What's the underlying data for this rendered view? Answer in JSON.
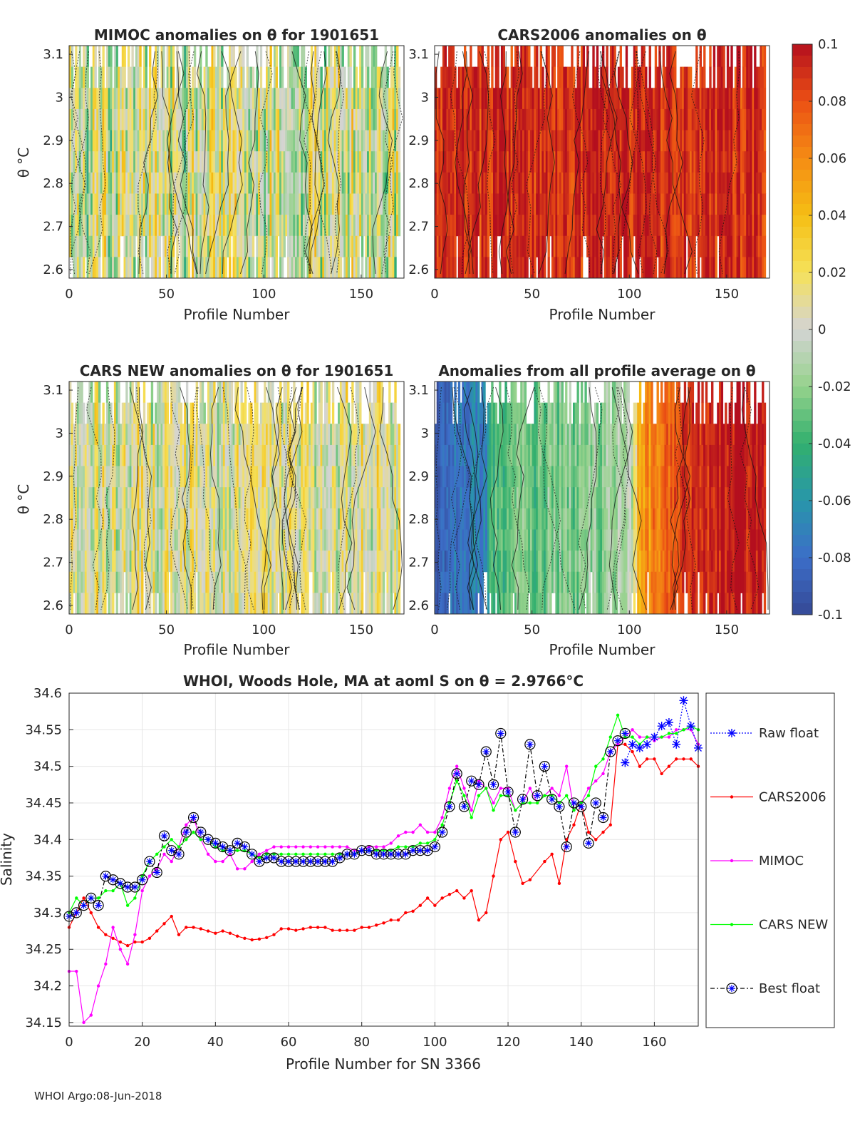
{
  "footer": "WHOI Argo:08-Jun-2018",
  "colors": {
    "raw": "#0000ff",
    "cars2006": "#ff0000",
    "mimoc": "#ff00ff",
    "carsnew": "#00ff00",
    "best": "#000000",
    "grid": "#e6e6e6"
  },
  "colorbar": {
    "ticks": [
      "0.1",
      "0.08",
      "0.06",
      "0.04",
      "0.02",
      "0",
      "-0.02",
      "-0.04",
      "-0.06",
      "-0.08",
      "-0.1"
    ],
    "range": [
      -0.1,
      0.1
    ],
    "colormap": "parula-like diverging (blue-green-gray-yellow-red)"
  },
  "chart_data": [
    {
      "type": "heatmap",
      "title": "MIMOC anomalies on θ  for 1901651",
      "xlabel": "Profile Number",
      "ylabel": "θ °C",
      "xlim": [
        0,
        172
      ],
      "ylim": [
        2.58,
        3.12
      ],
      "xticks": [
        "0",
        "50",
        "100",
        "150"
      ],
      "yticks": [
        "3.1",
        "3",
        "2.9",
        "2.8",
        "2.7",
        "2.6"
      ],
      "bias": 0.0,
      "spread": 0.045,
      "contours": true
    },
    {
      "type": "heatmap",
      "title": "CARS2006 anomalies on θ",
      "xlabel": "Profile Number",
      "ylabel": "",
      "xlim": [
        0,
        172
      ],
      "ylim": [
        2.58,
        3.12
      ],
      "xticks": [
        "0",
        "50",
        "100",
        "150"
      ],
      "yticks": [
        "3.1",
        "3",
        "2.9",
        "2.8",
        "2.7",
        "2.6"
      ],
      "bias": 0.09,
      "spread": 0.02,
      "contours": true
    },
    {
      "type": "heatmap",
      "title": "CARS NEW anomalies on θ for 1901651",
      "xlabel": "Profile Number",
      "ylabel": "θ °C",
      "xlim": [
        0,
        172
      ],
      "ylim": [
        2.58,
        3.12
      ],
      "xticks": [
        "0",
        "50",
        "100",
        "150"
      ],
      "yticks": [
        "3.1",
        "3",
        "2.9",
        "2.8",
        "2.7",
        "2.6"
      ],
      "bias": 0.005,
      "spread": 0.035,
      "contours": true
    },
    {
      "type": "heatmap",
      "title": "Anomalies from all profile average on θ",
      "xlabel": "Profile Number",
      "ylabel": "",
      "xlim": [
        0,
        172
      ],
      "ylim": [
        2.58,
        3.12
      ],
      "xticks": [
        "0",
        "50",
        "100",
        "150"
      ],
      "yticks": [
        "3.1",
        "3",
        "2.9",
        "2.8",
        "2.7",
        "2.6"
      ],
      "bias_by_profile": [
        [
          0,
          -0.09
        ],
        [
          25,
          -0.07
        ],
        [
          30,
          -0.035
        ],
        [
          80,
          -0.02
        ],
        [
          100,
          -0.015
        ],
        [
          105,
          0.05
        ],
        [
          120,
          0.08
        ],
        [
          150,
          0.1
        ],
        [
          172,
          0.1
        ]
      ],
      "spread": 0.02,
      "contours": true
    },
    {
      "type": "line",
      "title": "WHOI, Woods Hole, MA at aoml S on θ = 2.9766°C",
      "xlabel": "Profile Number for SN 3366",
      "ylabel": "Salinity",
      "xlim": [
        0,
        172
      ],
      "ylim": [
        34.145,
        34.6
      ],
      "xticks": [
        "0",
        "20",
        "40",
        "60",
        "80",
        "100",
        "120",
        "140",
        "160"
      ],
      "yticks": [
        "34.6",
        "34.55",
        "34.5",
        "34.45",
        "34.4",
        "34.35",
        "34.3",
        "34.25",
        "34.2",
        "34.15"
      ],
      "legend": [
        "Raw float",
        "CARS2006",
        "MIMOC",
        "CARS NEW",
        "Best float"
      ],
      "series": [
        {
          "name": "Raw float",
          "x": [
            152,
            154,
            156,
            158,
            160,
            162,
            164,
            166,
            168,
            170,
            172
          ],
          "y": [
            34.505,
            34.53,
            34.525,
            34.53,
            34.54,
            34.555,
            34.56,
            34.53,
            34.59,
            34.555,
            34.525
          ]
        },
        {
          "name": "Best float",
          "x": [
            0,
            2,
            4,
            6,
            8,
            10,
            12,
            14,
            16,
            18,
            20,
            22,
            24,
            26,
            28,
            30,
            32,
            34,
            36,
            38,
            40,
            42,
            44,
            46,
            48,
            50,
            52,
            54,
            56,
            58,
            60,
            62,
            64,
            66,
            68,
            70,
            72,
            74,
            76,
            78,
            80,
            82,
            84,
            86,
            88,
            90,
            92,
            94,
            96,
            98,
            100,
            102,
            104,
            106,
            108,
            110,
            112,
            114,
            116,
            118,
            120,
            122,
            124,
            126,
            128,
            130,
            132,
            134,
            136,
            138,
            140,
            142,
            144,
            146,
            148,
            150,
            152
          ],
          "y": [
            34.295,
            34.3,
            34.31,
            34.32,
            34.31,
            34.35,
            34.345,
            34.34,
            34.335,
            34.335,
            34.345,
            34.37,
            34.355,
            34.405,
            34.385,
            34.38,
            34.41,
            34.43,
            34.41,
            34.4,
            34.395,
            34.39,
            34.385,
            34.395,
            34.39,
            34.38,
            34.37,
            34.375,
            34.375,
            34.37,
            34.37,
            34.37,
            34.37,
            34.37,
            34.37,
            34.37,
            34.37,
            34.375,
            34.38,
            34.38,
            34.385,
            34.385,
            34.38,
            34.38,
            34.38,
            34.38,
            34.38,
            34.385,
            34.385,
            34.385,
            34.39,
            34.41,
            34.445,
            34.49,
            34.445,
            34.48,
            34.475,
            34.52,
            34.475,
            34.545,
            34.465,
            34.41,
            34.455,
            34.53,
            34.46,
            34.5,
            34.455,
            34.445,
            34.39,
            34.45,
            34.445,
            34.395,
            34.45,
            34.43,
            34.52,
            34.535,
            34.545
          ]
        },
        {
          "name": "CARS2006",
          "x": [
            0,
            2,
            4,
            6,
            8,
            10,
            12,
            14,
            16,
            18,
            20,
            22,
            24,
            26,
            28,
            30,
            32,
            34,
            36,
            38,
            40,
            42,
            44,
            46,
            48,
            50,
            52,
            54,
            56,
            58,
            60,
            62,
            64,
            66,
            68,
            70,
            72,
            74,
            76,
            78,
            80,
            82,
            84,
            86,
            88,
            90,
            92,
            94,
            96,
            98,
            100,
            102,
            104,
            106,
            108,
            110,
            112,
            114,
            116,
            118,
            120,
            122,
            124,
            126,
            130,
            132,
            134,
            136,
            138,
            140,
            142,
            144,
            146,
            148,
            150,
            152,
            154,
            156,
            158,
            160,
            162,
            164,
            166,
            168,
            170,
            172
          ],
          "y": [
            34.28,
            34.3,
            34.32,
            34.3,
            34.28,
            34.27,
            34.265,
            34.26,
            34.255,
            34.26,
            34.26,
            34.265,
            34.275,
            34.285,
            34.295,
            34.27,
            34.28,
            34.28,
            34.278,
            34.275,
            34.272,
            34.275,
            34.272,
            34.268,
            34.265,
            34.263,
            34.264,
            34.266,
            34.27,
            34.278,
            34.278,
            34.276,
            34.278,
            34.28,
            34.28,
            34.28,
            34.276,
            34.276,
            34.276,
            34.276,
            34.28,
            34.28,
            34.283,
            34.286,
            34.29,
            34.29,
            34.3,
            34.302,
            34.31,
            34.32,
            34.31,
            34.32,
            34.325,
            34.33,
            34.32,
            34.33,
            34.29,
            34.3,
            34.35,
            34.4,
            34.41,
            34.37,
            34.34,
            34.345,
            34.37,
            34.38,
            34.34,
            34.4,
            34.42,
            34.45,
            34.41,
            34.4,
            34.41,
            34.42,
            34.53,
            34.53,
            34.52,
            34.5,
            34.51,
            34.51,
            34.49,
            34.5,
            34.51,
            34.51,
            34.51,
            34.5
          ]
        },
        {
          "name": "MIMOC",
          "x": [
            0,
            2,
            4,
            6,
            8,
            10,
            12,
            14,
            16,
            18,
            20,
            22,
            24,
            26,
            28,
            30,
            32,
            34,
            36,
            38,
            40,
            42,
            44,
            46,
            48,
            50,
            52,
            54,
            56,
            58,
            60,
            62,
            64,
            66,
            68,
            70,
            72,
            74,
            76,
            78,
            80,
            82,
            84,
            86,
            88,
            90,
            92,
            94,
            96,
            98,
            100,
            102,
            104,
            106,
            108,
            110,
            112,
            114,
            116,
            118,
            120,
            122,
            124,
            126,
            128,
            130,
            132,
            134,
            136,
            138,
            140,
            142,
            144,
            146,
            148,
            150,
            152,
            154,
            156,
            158,
            160,
            162,
            164,
            166,
            168,
            170,
            172
          ],
          "y": [
            34.22,
            34.22,
            34.15,
            34.16,
            34.2,
            34.23,
            34.28,
            34.25,
            34.23,
            34.27,
            34.33,
            34.35,
            34.36,
            34.38,
            34.37,
            34.39,
            34.42,
            34.43,
            34.4,
            34.38,
            34.37,
            34.37,
            34.38,
            34.36,
            34.36,
            34.37,
            34.38,
            34.385,
            34.39,
            34.39,
            34.39,
            34.39,
            34.39,
            34.39,
            34.39,
            34.39,
            34.39,
            34.39,
            34.39,
            34.385,
            34.385,
            34.39,
            34.39,
            34.39,
            34.395,
            34.405,
            34.41,
            34.41,
            34.42,
            34.41,
            34.41,
            34.43,
            34.47,
            34.5,
            34.47,
            34.44,
            34.48,
            34.47,
            34.45,
            34.47,
            34.47,
            34.44,
            34.45,
            34.47,
            34.45,
            34.46,
            34.47,
            34.46,
            34.5,
            34.44,
            34.45,
            34.47,
            34.48,
            34.49,
            34.52,
            34.53,
            34.54,
            34.55,
            34.54,
            34.54,
            34.535,
            34.54,
            34.54,
            34.55,
            34.55,
            34.55,
            34.53
          ]
        },
        {
          "name": "CARS NEW",
          "x": [
            0,
            2,
            4,
            6,
            8,
            10,
            12,
            14,
            16,
            18,
            20,
            22,
            24,
            26,
            28,
            30,
            32,
            34,
            36,
            38,
            40,
            42,
            44,
            46,
            48,
            50,
            52,
            54,
            56,
            58,
            60,
            62,
            64,
            66,
            68,
            70,
            72,
            74,
            76,
            78,
            80,
            82,
            84,
            86,
            88,
            90,
            92,
            94,
            96,
            98,
            100,
            102,
            104,
            106,
            108,
            110,
            112,
            114,
            116,
            118,
            120,
            122,
            124,
            126,
            128,
            130,
            132,
            134,
            136,
            138,
            140,
            142,
            144,
            146,
            148,
            150,
            152,
            154,
            156,
            158,
            160,
            162,
            164,
            166,
            168,
            170,
            172
          ],
          "y": [
            34.3,
            34.32,
            34.31,
            34.32,
            34.32,
            34.33,
            34.33,
            34.34,
            34.31,
            34.32,
            34.35,
            34.37,
            34.38,
            34.39,
            34.4,
            34.39,
            34.4,
            34.41,
            34.4,
            34.4,
            34.39,
            34.385,
            34.385,
            34.385,
            34.385,
            34.38,
            34.375,
            34.38,
            34.38,
            34.38,
            34.38,
            34.38,
            34.38,
            34.38,
            34.38,
            34.38,
            34.38,
            34.38,
            34.38,
            34.38,
            34.385,
            34.385,
            34.385,
            34.385,
            34.385,
            34.39,
            34.39,
            34.39,
            34.395,
            34.395,
            34.4,
            34.42,
            34.45,
            34.48,
            34.46,
            34.43,
            34.46,
            34.47,
            34.44,
            34.46,
            34.46,
            34.44,
            34.45,
            34.45,
            34.45,
            34.46,
            34.46,
            34.45,
            34.46,
            34.44,
            34.45,
            34.46,
            34.5,
            34.51,
            34.54,
            34.57,
            34.54,
            34.54,
            34.53,
            34.54,
            34.54,
            34.54,
            34.545,
            34.545,
            34.55,
            34.555,
            34.55
          ]
        }
      ]
    }
  ]
}
